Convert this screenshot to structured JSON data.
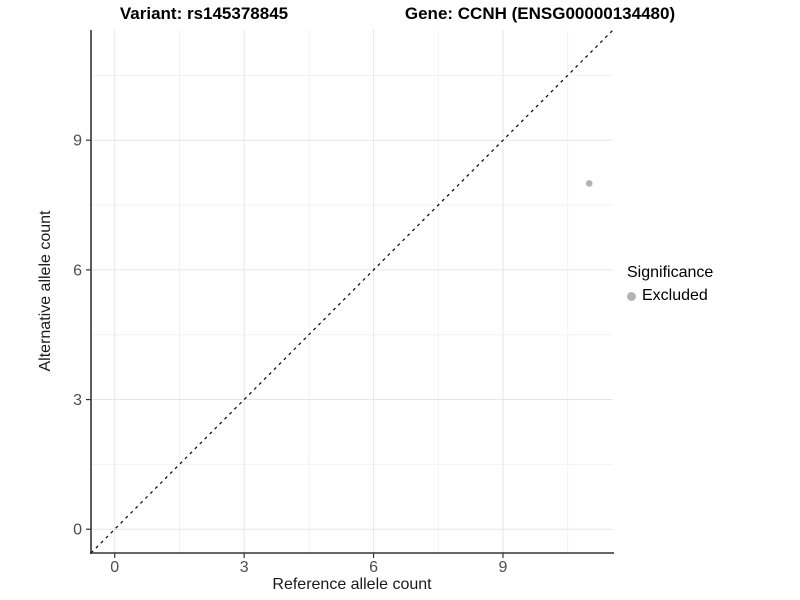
{
  "header": {
    "variant_title": "Variant: rs145378845",
    "gene_title": "Gene: CCNH (ENSG00000134480)"
  },
  "chart_data": {
    "type": "scatter",
    "title": "Variant: rs145378845 / Gene: CCNH (ENSG00000134480)",
    "xlabel": "Reference allele count",
    "ylabel": "Alternative allele count",
    "xlim": [
      -0.55,
      11.55
    ],
    "ylim": [
      -0.55,
      11.55
    ],
    "x_ticks": [
      0,
      3,
      6,
      9
    ],
    "y_ticks": [
      0,
      3,
      6,
      9
    ],
    "x_minor_ticks": [
      1.5,
      4.5,
      7.5,
      10.5
    ],
    "y_minor_ticks": [
      1.5,
      4.5,
      7.5,
      10.5
    ],
    "grid": "major+minor",
    "reference_line": {
      "kind": "identity",
      "slope": 1,
      "intercept": 0,
      "linetype": "dashed",
      "color": "#000000"
    },
    "series": [
      {
        "name": "Excluded",
        "color": "#b3b3b3",
        "points": [
          {
            "x": 11,
            "y": 8
          }
        ]
      }
    ],
    "legend": {
      "title": "Significance",
      "position": "right",
      "items": [
        {
          "label": "Excluded",
          "color": "#b3b3b3"
        }
      ]
    },
    "colors": {
      "background": "#ffffff",
      "panel_background": "#ffffff",
      "grid_major": "#e6e6e6",
      "grid_minor": "#f2f2f2",
      "axis_line": "#333333",
      "tick_label": "#4d4d4d",
      "title_text": "#000000"
    }
  }
}
